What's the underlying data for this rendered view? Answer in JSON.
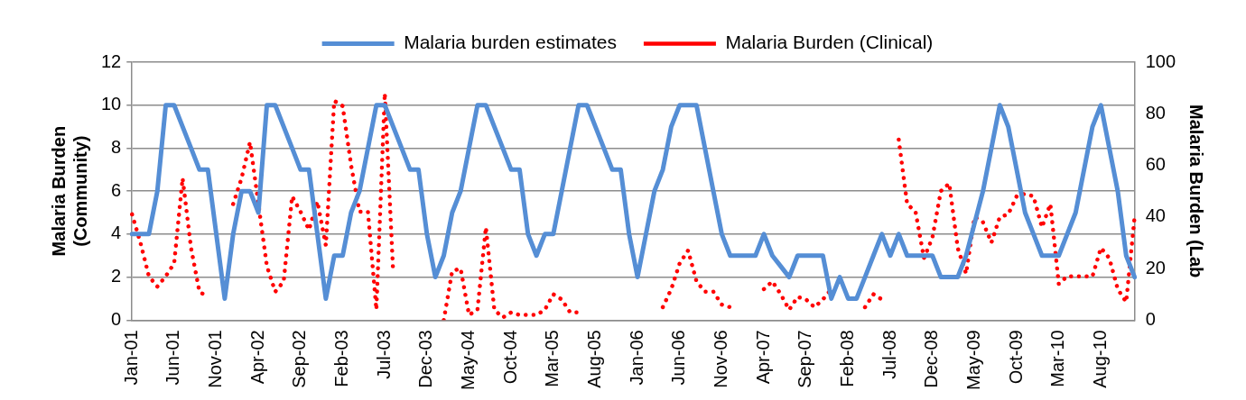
{
  "chart_data": {
    "type": "line",
    "categories": [
      "Jan-01",
      null,
      null,
      null,
      null,
      "Jun-01",
      null,
      null,
      null,
      null,
      "Nov-01",
      null,
      null,
      null,
      null,
      "Apr-02",
      null,
      null,
      null,
      null,
      "Sep-02",
      null,
      null,
      null,
      null,
      "Feb-03",
      null,
      null,
      null,
      null,
      "Jul-03",
      null,
      null,
      null,
      null,
      "Dec-03",
      null,
      null,
      null,
      null,
      "May-04",
      null,
      null,
      null,
      null,
      "Oct-04",
      null,
      null,
      null,
      null,
      "Mar-05",
      null,
      null,
      null,
      null,
      "Aug-05",
      null,
      null,
      null,
      null,
      "Jan-06",
      null,
      null,
      null,
      null,
      "Jun-06",
      null,
      null,
      null,
      null,
      "Nov-06",
      null,
      null,
      null,
      null,
      "Apr-07",
      null,
      null,
      null,
      null,
      "Sep-07",
      null,
      null,
      null,
      null,
      "Feb-08",
      null,
      null,
      null,
      null,
      "Jul-08",
      null,
      null,
      null,
      null,
      "Dec-08",
      null,
      null,
      null,
      null,
      "May-09",
      null,
      null,
      null,
      null,
      "Oct-09",
      null,
      null,
      null,
      null,
      "Mar-10",
      null,
      null,
      null,
      null,
      "Aug-10",
      null,
      null,
      null,
      null
    ],
    "series": [
      {
        "name": "Malaria burden estimates",
        "color": "#558ed5",
        "line_style": "solid",
        "values": [
          4,
          4,
          4,
          6,
          10,
          10,
          9,
          8,
          7,
          7,
          4,
          1,
          4,
          6,
          6,
          5,
          10,
          10,
          9,
          8,
          7,
          7,
          4,
          1,
          3,
          3,
          5,
          6,
          8,
          10,
          10,
          9,
          8,
          7,
          7,
          4,
          2,
          3,
          5,
          6,
          8,
          10,
          10,
          9,
          8,
          7,
          7,
          4,
          3,
          4,
          4,
          6,
          8,
          10,
          10,
          9,
          8,
          7,
          7,
          4,
          2,
          4,
          6,
          7,
          9,
          10,
          10,
          10,
          8,
          6,
          4,
          3,
          3,
          3,
          3,
          4,
          3,
          2.5,
          2,
          3,
          3,
          3,
          3,
          1,
          2,
          1,
          1,
          2,
          3,
          4,
          3,
          4,
          3,
          3,
          3,
          3,
          2,
          2,
          2,
          3,
          4.5,
          6,
          8,
          10,
          9,
          7,
          5,
          4,
          3,
          3,
          3,
          4,
          5,
          7,
          9,
          10,
          8,
          6,
          3,
          2
        ]
      },
      {
        "name": "Malaria Burden (Clinical)",
        "color": "#ff0000",
        "line_style": "dotted",
        "axis": "y2",
        "values": [
          41,
          30,
          17,
          13,
          17,
          22,
          55,
          28,
          11,
          9,
          null,
          null,
          45,
          55,
          69,
          45,
          21,
          11,
          15,
          48,
          42,
          35,
          46,
          29,
          85,
          83,
          60,
          42,
          42,
          4,
          88,
          18,
          null,
          null,
          null,
          null,
          null,
          0,
          19,
          20,
          2,
          4,
          36,
          4,
          1,
          3,
          2,
          2,
          2,
          4,
          10,
          8,
          3,
          3,
          null,
          null,
          null,
          null,
          null,
          null,
          null,
          null,
          null,
          5,
          12,
          22,
          27,
          15,
          11,
          11,
          6,
          5,
          null,
          null,
          null,
          12,
          15,
          10,
          4,
          9,
          8,
          5,
          8,
          12,
          null,
          null,
          null,
          5,
          10,
          8,
          null,
          70,
          45,
          42,
          24,
          32,
          50,
          53,
          28,
          18,
          40,
          38,
          30,
          40,
          41,
          48,
          49,
          48,
          36,
          45,
          14,
          17,
          17,
          17,
          17,
          28,
          24,
          12,
          7,
          40
        ]
      }
    ],
    "ylabel": "Malaria Burden (Community)",
    "y2label": "Malaria Burden (Lab",
    "ylim": [
      0,
      12
    ],
    "yticks": [
      0,
      2,
      4,
      6,
      8,
      10,
      12
    ],
    "y2lim": [
      0,
      100
    ],
    "y2ticks": [
      0,
      20,
      40,
      60,
      80,
      100
    ],
    "grid": "y",
    "legend": "top"
  }
}
